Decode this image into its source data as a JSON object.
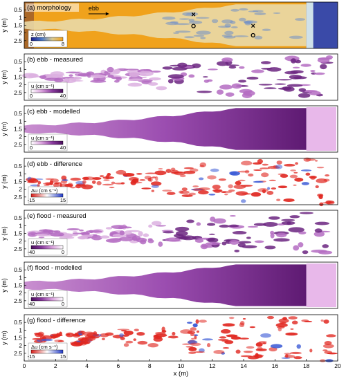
{
  "figure": {
    "xlabel": "x (m)",
    "xticks": [
      "0",
      "2",
      "4",
      "6",
      "8",
      "10",
      "12",
      "14",
      "16",
      "18",
      "20"
    ]
  },
  "chart_data": [
    {
      "type": "heatmap",
      "title": "(a) morphology",
      "ylabel": "y (m)",
      "yticks": [
        "0.5",
        "1",
        "1.5",
        "2",
        "2.5"
      ],
      "xlim": [
        0,
        20
      ],
      "ylim": [
        0,
        3
      ],
      "colorbar": {
        "label": "z (cm)",
        "min": "0",
        "max": "8",
        "colors": [
          "#1b1f8a",
          "#4a78c8",
          "#d8c890",
          "#f2a31c"
        ]
      },
      "annotations": {
        "arrow_label": "ebb",
        "markers": [
          {
            "symbol": "×",
            "x": 10.8,
            "y": 0.8
          },
          {
            "symbol": "o",
            "x": 10.8,
            "y": 1.55
          },
          {
            "symbol": "×",
            "x": 14.6,
            "y": 1.55
          },
          {
            "symbol": "o",
            "x": 14.6,
            "y": 2.15
          }
        ]
      }
    },
    {
      "type": "heatmap",
      "title": "(b) ebb - measured",
      "ylabel": "y (m)",
      "yticks": [
        "0.5",
        "1",
        "1.5",
        "2",
        "2.5"
      ],
      "xlim": [
        0,
        20
      ],
      "ylim": [
        0,
        3
      ],
      "colorbar": {
        "label": "u (cm s⁻¹)",
        "min": "0",
        "max": "40",
        "colors": [
          "#ffffff",
          "#d9a0dc",
          "#8a3a9e",
          "#4b0f5e"
        ]
      }
    },
    {
      "type": "heatmap",
      "title": "(c) ebb - modelled",
      "ylabel": "y (m)",
      "yticks": [
        "0.5",
        "1",
        "1.5",
        "2",
        "2.5"
      ],
      "xlim": [
        0,
        20
      ],
      "ylim": [
        0,
        3
      ],
      "colorbar": {
        "label": "u (cm s⁻¹)",
        "min": "0",
        "max": "40",
        "colors": [
          "#ffffff",
          "#d9a0dc",
          "#8a3a9e",
          "#4b0f5e"
        ]
      }
    },
    {
      "type": "heatmap",
      "title": "(d) ebb - difference",
      "ylabel": "y (m)",
      "yticks": [
        "0.5",
        "1",
        "1.5",
        "2",
        "2.5"
      ],
      "xlim": [
        0,
        20
      ],
      "ylim": [
        0,
        3
      ],
      "colorbar": {
        "label": "Δu (cm s⁻¹)",
        "min": "-15",
        "max": "15",
        "colors": [
          "#d9201b",
          "#ffffff",
          "#2039c8"
        ]
      }
    },
    {
      "type": "heatmap",
      "title": "(e) flood - measured",
      "ylabel": "y (m)",
      "yticks": [
        "0.5",
        "1",
        "1.5",
        "2",
        "2.5"
      ],
      "xlim": [
        0,
        20
      ],
      "ylim": [
        0,
        3
      ],
      "colorbar": {
        "label": "u (cm s⁻¹)",
        "min": "-40",
        "max": "0",
        "colors": [
          "#4b0f5e",
          "#8a3a9e",
          "#d9a0dc",
          "#ffffff"
        ]
      }
    },
    {
      "type": "heatmap",
      "title": "(f) flood - modelled",
      "ylabel": "y (m)",
      "yticks": [
        "0.5",
        "1",
        "1.5",
        "2",
        "2.5"
      ],
      "xlim": [
        0,
        20
      ],
      "ylim": [
        0,
        3
      ],
      "colorbar": {
        "label": "u (cm s⁻¹)",
        "min": "-40",
        "max": "0",
        "colors": [
          "#4b0f5e",
          "#8a3a9e",
          "#d9a0dc",
          "#ffffff"
        ]
      }
    },
    {
      "type": "heatmap",
      "title": "(g) flood - difference",
      "ylabel": "y (m)",
      "yticks": [
        "0.5",
        "1",
        "1.5",
        "2",
        "2.5"
      ],
      "xlim": [
        0,
        20
      ],
      "ylim": [
        0,
        3
      ],
      "colorbar": {
        "label": "Δu (cm s⁻¹)",
        "min": "-15",
        "max": "15",
        "colors": [
          "#d9201b",
          "#ffffff",
          "#2039c8"
        ]
      }
    }
  ]
}
